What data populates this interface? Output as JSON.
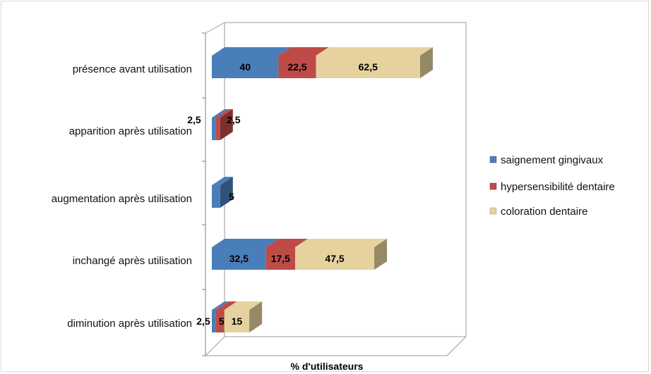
{
  "chart_data": {
    "type": "bar",
    "orientation": "horizontal",
    "stacked": true,
    "three_d": true,
    "categories": [
      "présence avant utilisation",
      "apparition après utilisation",
      "augmentation après utilisation",
      "inchangé après utilisation",
      "diminution après utilisation"
    ],
    "series": [
      {
        "name": "saignement gingivaux",
        "color": "#4a7ebb",
        "values": [
          40,
          2.5,
          5,
          32.5,
          2.5
        ]
      },
      {
        "name": "hypersensibilité dentaire",
        "color": "#be4b48",
        "values": [
          22.5,
          2.5,
          0,
          17.5,
          5
        ]
      },
      {
        "name": "coloration dentaire",
        "color": "#e6d29e",
        "values": [
          62.5,
          0,
          0,
          47.5,
          15
        ]
      }
    ],
    "data_labels": [
      [
        "40",
        "22,5",
        "62,5"
      ],
      [
        "2,5",
        "2,5",
        ""
      ],
      [
        "5",
        "",
        ""
      ],
      [
        "32,5",
        "17,5",
        "47,5"
      ],
      [
        "2,5",
        "5",
        "15"
      ]
    ],
    "xlabel": "% d'utilisateurs",
    "ylabel": "",
    "title": "",
    "legend_position": "right",
    "grid": false
  }
}
